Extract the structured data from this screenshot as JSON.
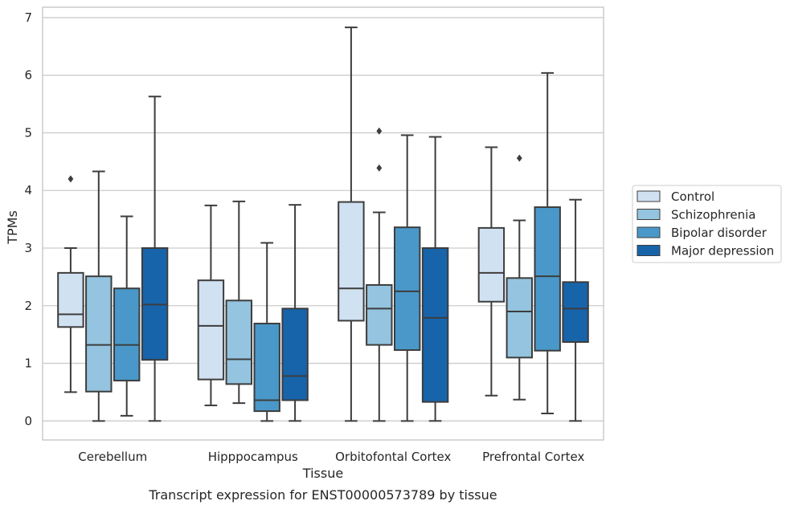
{
  "chart_data": {
    "type": "box",
    "title": "",
    "caption": "Transcript expression for ENST00000573789 by tissue",
    "xlabel": "Tissue",
    "ylabel": "TPMs",
    "ylim": [
      -0.33,
      7.18
    ],
    "yticks": [
      0,
      1,
      2,
      3,
      4,
      5,
      6,
      7
    ],
    "categories": [
      "Cerebellum",
      "Hipppocampus",
      "Orbitofontal Cortex",
      "Prefrontal Cortex"
    ],
    "grid": true,
    "legend_position": "right-center",
    "series": [
      {
        "name": "Control",
        "color": "#d0e1f2",
        "boxes": [
          {
            "whisker_low": 0.5,
            "q1": 1.63,
            "median": 1.85,
            "q3": 2.57,
            "whisker_high": 3.0,
            "outliers": [
              4.2
            ]
          },
          {
            "whisker_low": 0.27,
            "q1": 0.72,
            "median": 1.65,
            "q3": 2.44,
            "whisker_high": 3.74,
            "outliers": []
          },
          {
            "whisker_low": 0.0,
            "q1": 1.74,
            "median": 2.3,
            "q3": 3.8,
            "whisker_high": 6.83,
            "outliers": []
          },
          {
            "whisker_low": 0.44,
            "q1": 2.07,
            "median": 2.57,
            "q3": 3.35,
            "whisker_high": 4.75,
            "outliers": []
          }
        ]
      },
      {
        "name": "Schizophrenia",
        "color": "#94c4df",
        "boxes": [
          {
            "whisker_low": 0.0,
            "q1": 0.51,
            "median": 1.32,
            "q3": 2.51,
            "whisker_high": 4.33,
            "outliers": []
          },
          {
            "whisker_low": 0.31,
            "q1": 0.64,
            "median": 1.07,
            "q3": 2.09,
            "whisker_high": 3.81,
            "outliers": []
          },
          {
            "whisker_low": 0.0,
            "q1": 1.32,
            "median": 1.95,
            "q3": 2.36,
            "whisker_high": 3.62,
            "outliers": [
              5.03,
              4.39
            ]
          },
          {
            "whisker_low": 0.37,
            "q1": 1.1,
            "median": 1.9,
            "q3": 2.48,
            "whisker_high": 3.48,
            "outliers": [
              4.56
            ]
          }
        ]
      },
      {
        "name": "Bipolar disorder",
        "color": "#4a98c9",
        "boxes": [
          {
            "whisker_low": 0.09,
            "q1": 0.7,
            "median": 1.32,
            "q3": 2.3,
            "whisker_high": 3.55,
            "outliers": []
          },
          {
            "whisker_low": 0.0,
            "q1": 0.17,
            "median": 0.36,
            "q3": 1.69,
            "whisker_high": 3.09,
            "outliers": []
          },
          {
            "whisker_low": 0.0,
            "q1": 1.23,
            "median": 2.25,
            "q3": 3.36,
            "whisker_high": 4.96,
            "outliers": []
          },
          {
            "whisker_low": 0.13,
            "q1": 1.22,
            "median": 2.51,
            "q3": 3.71,
            "whisker_high": 6.04,
            "outliers": []
          }
        ]
      },
      {
        "name": "Major depression",
        "color": "#1764ab",
        "boxes": [
          {
            "whisker_low": 0.0,
            "q1": 1.06,
            "median": 2.02,
            "q3": 3.0,
            "whisker_high": 5.63,
            "outliers": []
          },
          {
            "whisker_low": 0.0,
            "q1": 0.36,
            "median": 0.78,
            "q3": 1.95,
            "whisker_high": 3.75,
            "outliers": []
          },
          {
            "whisker_low": 0.0,
            "q1": 0.33,
            "median": 1.79,
            "q3": 3.0,
            "whisker_high": 4.93,
            "outliers": []
          },
          {
            "whisker_low": 0.0,
            "q1": 1.37,
            "median": 1.95,
            "q3": 2.41,
            "whisker_high": 3.84,
            "outliers": []
          }
        ]
      }
    ]
  }
}
